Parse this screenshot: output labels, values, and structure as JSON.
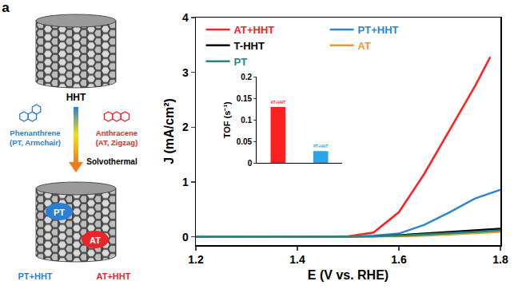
{
  "panel_a": {
    "label": "a",
    "start": "HHT",
    "reagents": [
      {
        "name": "Phenanthrene",
        "note": "(PT, Armchair)"
      },
      {
        "name": "Anthracene",
        "note": "(AT, Zigzag)"
      }
    ],
    "process": "Solvothermal",
    "adsorbed": [
      "PT",
      "AT"
    ],
    "products": [
      "PT+HHT",
      "AT+HHT"
    ]
  },
  "chart_data": [
    {
      "type": "line",
      "panel": "b",
      "x_label": "E (V vs. RHE)",
      "y_label": "J (mA/cm²)",
      "x": [
        1.2,
        1.3,
        1.4,
        1.5,
        1.55,
        1.6,
        1.65,
        1.7,
        1.75,
        1.78,
        1.8
      ],
      "series": [
        {
          "name": "AT+HHT",
          "color": "#ff2020",
          "values": [
            0,
            0,
            0,
            0.01,
            0.08,
            0.45,
            1.15,
            1.95,
            2.75,
            3.28,
            null
          ]
        },
        {
          "name": "PT+HHT",
          "color": "#2e86d0",
          "values": [
            0,
            0,
            0,
            0,
            0.02,
            0.06,
            0.22,
            0.45,
            0.7,
            0.8,
            0.86
          ]
        },
        {
          "name": "T-HHT",
          "color": "#000000",
          "values": [
            0,
            0,
            0,
            0,
            0.01,
            0.03,
            0.06,
            0.09,
            0.12,
            0.14,
            0.15
          ]
        },
        {
          "name": "AT",
          "color": "#f39a1e",
          "values": [
            0,
            0,
            0,
            0,
            0,
            0.01,
            0.02,
            0.04,
            0.06,
            0.08,
            0.09
          ]
        },
        {
          "name": "PT",
          "color": "#1f8a84",
          "values": [
            0,
            0,
            0,
            0,
            0.01,
            0.02,
            0.04,
            0.07,
            0.09,
            0.11,
            0.12
          ]
        }
      ],
      "xlim": [
        1.2,
        1.8
      ],
      "xticks": [
        1.2,
        1.4,
        1.6,
        1.8
      ],
      "ylim": [
        -0.15,
        4
      ],
      "yticks": [
        0,
        1,
        2,
        3,
        4
      ],
      "grid": false,
      "legend": "top left"
    },
    {
      "type": "bar",
      "y_label": "TOF (s⁻¹)",
      "categories": [
        "AT+HHT",
        "PT+HHT"
      ],
      "values": [
        0.13,
        0.028
      ],
      "colors": [
        "#ff2020",
        "#2aa6e6"
      ],
      "ylim": [
        0,
        0.2
      ],
      "yticks": [
        0,
        {
          "value": 0.05,
          "label": "0.05"
        },
        {
          "value": 0.1,
          "label": "0.1"
        },
        {
          "value": 0.15,
          "label": "0.15"
        },
        {
          "value": 0.2,
          "label": "0.2"
        }
      ],
      "grid": false,
      "tick_labels": "y"
    }
  ]
}
